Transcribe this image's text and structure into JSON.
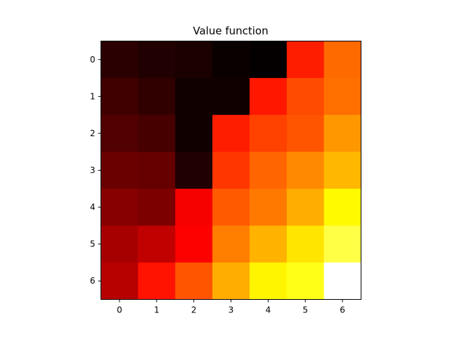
{
  "chart_data": {
    "type": "heatmap",
    "title": "Value function",
    "xlabel": "",
    "ylabel": "",
    "x_ticks": [
      "0",
      "1",
      "2",
      "3",
      "4",
      "5",
      "6"
    ],
    "y_ticks": [
      "0",
      "1",
      "2",
      "3",
      "4",
      "5",
      "6"
    ],
    "colormap": "hot",
    "grid": false,
    "values": [
      [
        0.08,
        0.06,
        0.05,
        0.02,
        0.01,
        0.53,
        0.68
      ],
      [
        0.12,
        0.09,
        0.03,
        0.03,
        0.52,
        0.62,
        0.69
      ],
      [
        0.15,
        0.13,
        0.03,
        0.53,
        0.6,
        0.64,
        0.77
      ],
      [
        0.2,
        0.19,
        0.06,
        0.58,
        0.67,
        0.74,
        0.83
      ],
      [
        0.25,
        0.23,
        0.46,
        0.65,
        0.71,
        0.81,
        0.96
      ],
      [
        0.31,
        0.36,
        0.47,
        0.72,
        0.82,
        0.92,
        1.06
      ],
      [
        0.34,
        0.51,
        0.64,
        0.81,
        0.95,
        1.0,
        1.3
      ]
    ],
    "vmin": 0.0,
    "vmax": 1.3
  }
}
